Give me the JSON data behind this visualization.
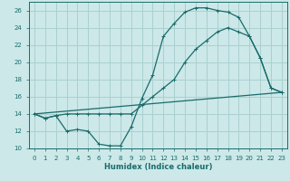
{
  "xlabel": "Humidex (Indice chaleur)",
  "xlim": [
    -0.5,
    23.5
  ],
  "ylim": [
    10,
    27
  ],
  "yticks": [
    10,
    12,
    14,
    16,
    18,
    20,
    22,
    24,
    26
  ],
  "xticks": [
    0,
    1,
    2,
    3,
    4,
    5,
    6,
    7,
    8,
    9,
    10,
    11,
    12,
    13,
    14,
    15,
    16,
    17,
    18,
    19,
    20,
    21,
    22,
    23
  ],
  "background_color": "#cce8e8",
  "grid_color": "#aad0d0",
  "line_color": "#1a6b6b",
  "line1_x": [
    0,
    1,
    2,
    3,
    4,
    5,
    6,
    7,
    8,
    9,
    10,
    11,
    12,
    13,
    14,
    15,
    16,
    17,
    18,
    19,
    20,
    21,
    22,
    23
  ],
  "line1_y": [
    14,
    13.5,
    13.8,
    14.0,
    14.0,
    14.0,
    14.0,
    14.0,
    14.0,
    14.0,
    15.0,
    16.0,
    17.0,
    18.0,
    20.0,
    21.5,
    22.5,
    23.5,
    24.0,
    23.5,
    23.0,
    20.5,
    17.0,
    16.5
  ],
  "line2_x": [
    0,
    1,
    2,
    3,
    4,
    5,
    6,
    7,
    8,
    9,
    10,
    11,
    12,
    13,
    14,
    15,
    16,
    17,
    18,
    19,
    20,
    21,
    22,
    23
  ],
  "line2_y": [
    14,
    13.5,
    13.8,
    12.0,
    12.2,
    12.0,
    10.5,
    10.3,
    10.3,
    12.5,
    15.8,
    18.5,
    23.0,
    24.5,
    25.8,
    26.3,
    26.3,
    26.0,
    25.8,
    25.2,
    23.0,
    20.5,
    17.0,
    16.5
  ],
  "line3_x": [
    0,
    23
  ],
  "line3_y": [
    14,
    16.5
  ],
  "xlabel_fontsize": 6,
  "tick_fontsize": 5
}
